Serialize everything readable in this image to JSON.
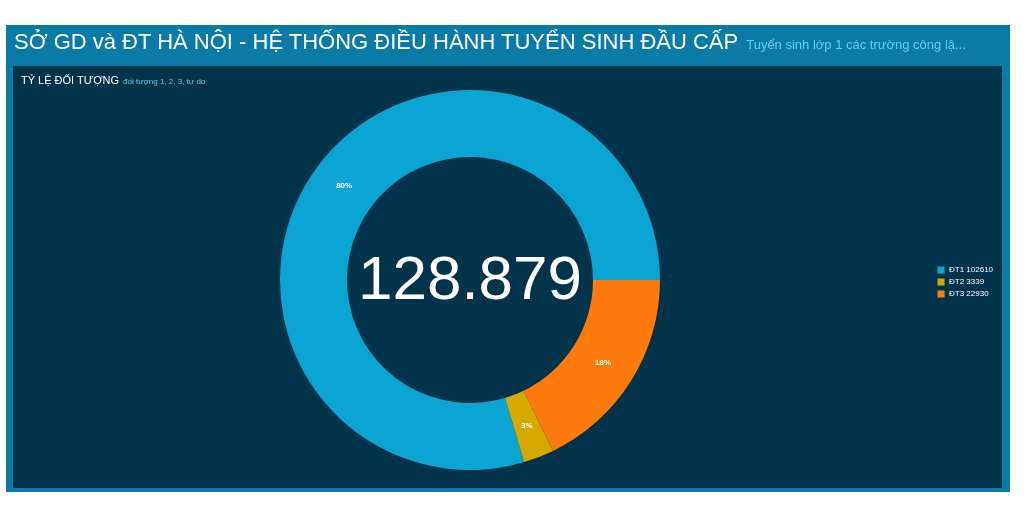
{
  "chart_data": {
    "type": "donut",
    "title": "SỞ GD và ĐT HÀ NỘI - HỆ THỐNG ĐIỀU HÀNH TUYỂN SINH ĐẦU CẤP",
    "subtitle": "Tuyển sinh lớp 1 các trường công lậ...",
    "categories": [
      "ĐT1  102610",
      "ĐT2  3339",
      "ĐT3  22930"
    ],
    "values": [
      79.6,
      2.6,
      17.8
    ],
    "colors": [
      "#0aa5d3",
      "#d6a800",
      "#ff7a0c"
    ],
    "value_labels": [
      "80%",
      "3%",
      "18%"
    ],
    "legend": "right",
    "annotations": [
      "TỶ LỆ ĐỐI TƯỢNG",
      "đối tượng 1, 2, 3, tự do",
      "128.879"
    ]
  }
}
